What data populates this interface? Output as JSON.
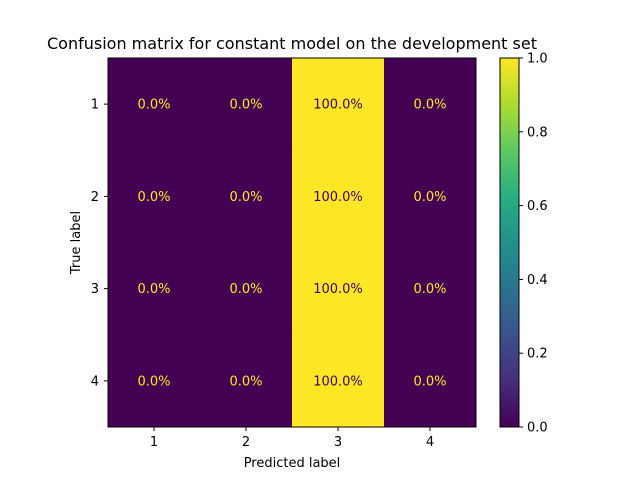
{
  "chart_data": {
    "type": "heatmap",
    "title": "Confusion matrix for constant model on the development set",
    "xlabel": "Predicted label",
    "ylabel": "True label",
    "x_categories": [
      "1",
      "2",
      "3",
      "4"
    ],
    "y_categories": [
      "1",
      "2",
      "3",
      "4"
    ],
    "values": [
      [
        0.0,
        0.0,
        1.0,
        0.0
      ],
      [
        0.0,
        0.0,
        1.0,
        0.0
      ],
      [
        0.0,
        0.0,
        1.0,
        0.0
      ],
      [
        0.0,
        0.0,
        1.0,
        0.0
      ]
    ],
    "cell_labels": [
      [
        "0.0%",
        "0.0%",
        "100.0%",
        "0.0%"
      ],
      [
        "0.0%",
        "0.0%",
        "100.0%",
        "0.0%"
      ],
      [
        "0.0%",
        "0.0%",
        "100.0%",
        "0.0%"
      ],
      [
        "0.0%",
        "0.0%",
        "100.0%",
        "0.0%"
      ]
    ],
    "colormap": "viridis",
    "colorbar": {
      "range": [
        0.0,
        1.0
      ],
      "ticks": [
        0.0,
        0.2,
        0.4,
        0.6,
        0.8,
        1.0
      ],
      "tick_labels": [
        "0.0",
        "0.2",
        "0.4",
        "0.6",
        "0.8",
        "1.0"
      ]
    },
    "colors": {
      "low": "#440154",
      "high": "#fde725",
      "text_on_low": "#fde725",
      "text_on_high": "#440154"
    },
    "grid": false
  }
}
